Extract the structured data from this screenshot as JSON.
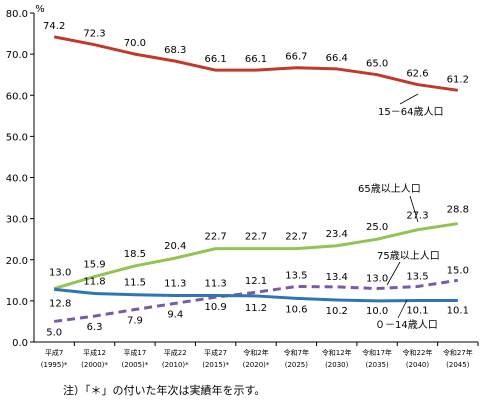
{
  "chart_data": {
    "type": "line",
    "unit_label": "%",
    "categories": [
      {
        "era": "平成7",
        "year": "(1995)*"
      },
      {
        "era": "平成12",
        "year": "(2000)*"
      },
      {
        "era": "平成17",
        "year": "(2005)*"
      },
      {
        "era": "平成22",
        "year": "(2010)*"
      },
      {
        "era": "平成27",
        "year": "(2015)*"
      },
      {
        "era": "令和2年",
        "year": "(2020)*"
      },
      {
        "era": "令和7年",
        "year": "(2025)"
      },
      {
        "era": "令和12年",
        "year": "(2030)"
      },
      {
        "era": "令和17年",
        "year": "(2035)"
      },
      {
        "era": "令和22年",
        "year": "(2040)"
      },
      {
        "era": "令和27年",
        "year": "(2045)"
      }
    ],
    "ylim": [
      0,
      80
    ],
    "yticks": [
      "0.0",
      "10.0",
      "20.0",
      "30.0",
      "40.0",
      "50.0",
      "60.0",
      "70.0",
      "80.0"
    ],
    "series": [
      {
        "name": "15－64歳人口",
        "color": "#c0392b",
        "dash": false,
        "values": [
          74.2,
          72.3,
          70.0,
          68.3,
          66.1,
          66.1,
          66.7,
          66.4,
          65.0,
          62.6,
          61.2
        ],
        "labels": [
          "74.2",
          "72.3",
          "70.0",
          "68.3",
          "66.1",
          "66.1",
          "66.7",
          "66.4",
          "65.0",
          "62.6",
          "61.2"
        ]
      },
      {
        "name": "65歳以上人口",
        "color": "#92c353",
        "dash": false,
        "values": [
          13.0,
          15.9,
          18.5,
          20.4,
          22.7,
          22.7,
          22.7,
          23.4,
          25.0,
          27.3,
          28.8
        ],
        "labels": [
          "13.0",
          "15.9",
          "18.5",
          "20.4",
          "22.7",
          "22.7",
          "22.7",
          "23.4",
          "25.0",
          "27.3",
          "28.8"
        ]
      },
      {
        "name": "75歳以上人口",
        "color": "#7b5aa6",
        "dash": true,
        "values": [
          5.0,
          6.3,
          7.9,
          9.4,
          10.9,
          12.1,
          13.5,
          13.4,
          13.0,
          13.5,
          15.0
        ],
        "labels": [
          "5.0",
          "6.3",
          "7.9",
          "9.4",
          "10.9",
          "12.1",
          "13.5",
          "13.4",
          "13.0",
          "13.5",
          "15.0"
        ]
      },
      {
        "name": "０－14歳人口",
        "color": "#2e75b6",
        "dash": false,
        "values": [
          12.8,
          11.8,
          11.5,
          11.3,
          11.3,
          11.2,
          10.6,
          10.2,
          10.0,
          10.1,
          10.1
        ],
        "labels": [
          "12.8",
          "11.8",
          "11.5",
          "11.3",
          "11.3",
          "11.2",
          "10.6",
          "10.2",
          "10.0",
          "10.1",
          "10.1"
        ]
      }
    ],
    "note": "注）「＊」の付いた年次は実績年を示す。"
  }
}
